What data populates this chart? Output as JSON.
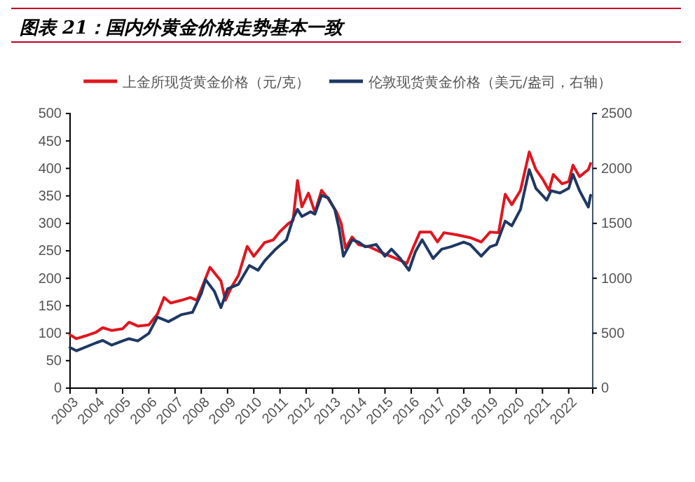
{
  "chart_data": {
    "type": "line",
    "title": "图表 21：国内外黄金价格走势基本一致",
    "x": [
      "2003-01",
      "2003-04",
      "2003-08",
      "2004-01",
      "2004-04",
      "2004-08",
      "2005-01",
      "2005-04",
      "2005-08",
      "2006-01",
      "2006-05",
      "2006-08",
      "2006-11",
      "2007-04",
      "2007-08",
      "2007-11",
      "2008-03",
      "2008-05",
      "2008-10",
      "2008-12",
      "2009-03",
      "2009-06",
      "2009-10",
      "2010-01",
      "2010-06",
      "2010-10",
      "2011-01",
      "2011-05",
      "2011-07",
      "2011-09",
      "2011-11",
      "2012-02",
      "2012-05",
      "2012-08",
      "2012-11",
      "2013-03",
      "2013-05",
      "2013-07",
      "2013-10",
      "2014-01",
      "2014-06",
      "2015-01",
      "2015-06",
      "2015-11",
      "2016-02",
      "2016-05",
      "2016-10",
      "2017-01",
      "2017-04",
      "2017-10",
      "2018-04",
      "2018-09",
      "2019-01",
      "2019-05",
      "2019-08",
      "2019-11",
      "2020-03",
      "2020-07",
      "2020-10",
      "2021-01",
      "2021-04",
      "2021-06",
      "2021-10",
      "2022-01",
      "2022-03",
      "2022-06",
      "2022-10",
      "2022-11"
    ],
    "series": [
      {
        "name": "上金所现货黄金价格（元/克）",
        "color": "#e0161f",
        "values": [
          97,
          90,
          95,
          102,
          110,
          105,
          108,
          120,
          113,
          115,
          135,
          165,
          155,
          160,
          165,
          160,
          200,
          220,
          195,
          160,
          185,
          205,
          258,
          240,
          265,
          270,
          285,
          300,
          305,
          378,
          330,
          355,
          320,
          360,
          345,
          320,
          300,
          255,
          275,
          261,
          257,
          244,
          236,
          227,
          257,
          284,
          284,
          266,
          283,
          279,
          274,
          266,
          284,
          283,
          353,
          334,
          360,
          430,
          398,
          381,
          360,
          389,
          372,
          376,
          406,
          385,
          398,
          409
        ]
      },
      {
        "name": "伦敦现货黄金价格（美元/盎司，右轴）",
        "color": "#1f3864",
        "axis": "y2",
        "x": [
          "2003-01",
          "2003-04",
          "2004-01",
          "2004-04",
          "2004-08",
          "2005-01",
          "2005-04",
          "2005-08",
          "2006-01",
          "2006-05",
          "2006-10",
          "2007-04",
          "2007-09",
          "2008-01",
          "2008-03",
          "2008-07",
          "2008-10",
          "2009-01",
          "2009-06",
          "2009-11",
          "2010-03",
          "2010-06",
          "2010-11",
          "2011-04",
          "2011-07",
          "2011-09",
          "2011-11",
          "2012-03",
          "2012-05",
          "2012-08",
          "2012-11",
          "2013-02",
          "2013-04",
          "2013-06",
          "2013-10",
          "2014-01",
          "2014-04",
          "2014-09",
          "2015-01",
          "2015-04",
          "2015-08",
          "2015-12",
          "2016-03",
          "2016-06",
          "2016-11",
          "2017-03",
          "2017-07",
          "2018-01",
          "2018-04",
          "2018-09",
          "2019-01",
          "2019-04",
          "2019-08",
          "2019-11",
          "2020-03",
          "2020-07",
          "2020-10",
          "2021-01",
          "2021-03",
          "2021-05",
          "2021-09",
          "2022-01",
          "2022-03",
          "2022-06",
          "2022-10",
          "2022-11"
        ],
        "values": [
          370,
          340,
          413,
          434,
          392,
          430,
          450,
          430,
          498,
          647,
          605,
          669,
          690,
          860,
          988,
          882,
          733,
          903,
          945,
          1116,
          1073,
          1158,
          1265,
          1350,
          1542,
          1627,
          1563,
          1606,
          1584,
          1755,
          1733,
          1627,
          1457,
          1201,
          1350,
          1329,
          1286,
          1307,
          1201,
          1265,
          1180,
          1073,
          1244,
          1350,
          1180,
          1265,
          1286,
          1329,
          1307,
          1201,
          1286,
          1307,
          1520,
          1478,
          1627,
          1989,
          1819,
          1755,
          1712,
          1797,
          1776,
          1819,
          1946,
          1797,
          1648,
          1755
        ]
      }
    ],
    "xlim": [
      "2003-01",
      "2022-12"
    ],
    "xticks": [
      "2003",
      "2004",
      "2005",
      "2006",
      "2007",
      "2008",
      "2009",
      "2010",
      "2011",
      "2012",
      "2013",
      "2014",
      "2015",
      "2016",
      "2017",
      "2018",
      "2019",
      "2020",
      "2021",
      "2022"
    ],
    "ylim": [
      0,
      500
    ],
    "yticks": [
      0,
      50,
      100,
      150,
      200,
      250,
      300,
      350,
      400,
      450,
      500
    ],
    "y2lim": [
      0,
      2500
    ],
    "y2ticks": [
      0,
      500,
      1000,
      1500,
      2000,
      2500
    ],
    "legend": "top",
    "grid": false,
    "marker": "none",
    "line_style": "solid"
  }
}
